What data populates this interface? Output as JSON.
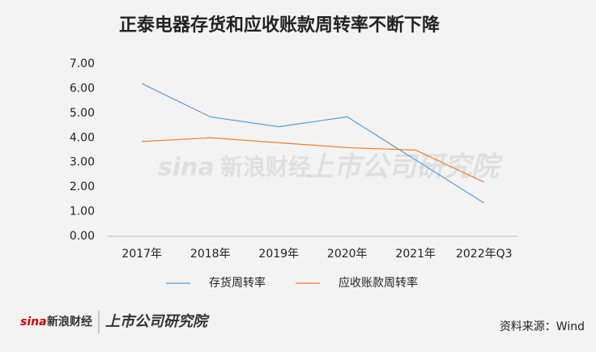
{
  "chart_data": {
    "type": "line",
    "title": "正泰电器存货和应收账款周转率不断下降",
    "categories": [
      "2017年",
      "2018年",
      "2019年",
      "2020年",
      "2021年",
      "2022年Q3"
    ],
    "series": [
      {
        "name": "存货周转率",
        "color": "#5b9bd5",
        "values": [
          6.2,
          4.85,
          4.45,
          4.85,
          3.1,
          1.35
        ]
      },
      {
        "name": "应收账款周转率",
        "color": "#ed7d31",
        "values": [
          3.85,
          4.0,
          3.8,
          3.6,
          3.5,
          2.2
        ]
      }
    ],
    "ylim": [
      0,
      7
    ],
    "yticks": [
      {
        "value": 0,
        "label": "0.00"
      },
      {
        "value": 1,
        "label": "1.00"
      },
      {
        "value": 2,
        "label": "2.00"
      },
      {
        "value": 3,
        "label": "3.00"
      },
      {
        "value": 4,
        "label": "4.00"
      },
      {
        "value": 5,
        "label": "5.00"
      },
      {
        "value": 6,
        "label": "6.00"
      },
      {
        "value": 7,
        "label": "7.00"
      }
    ],
    "grid": false,
    "legend": "bottom",
    "source": "资料来源：Wind",
    "logo": [
      "sina",
      "新浪财经",
      "上市公司研究院"
    ]
  }
}
